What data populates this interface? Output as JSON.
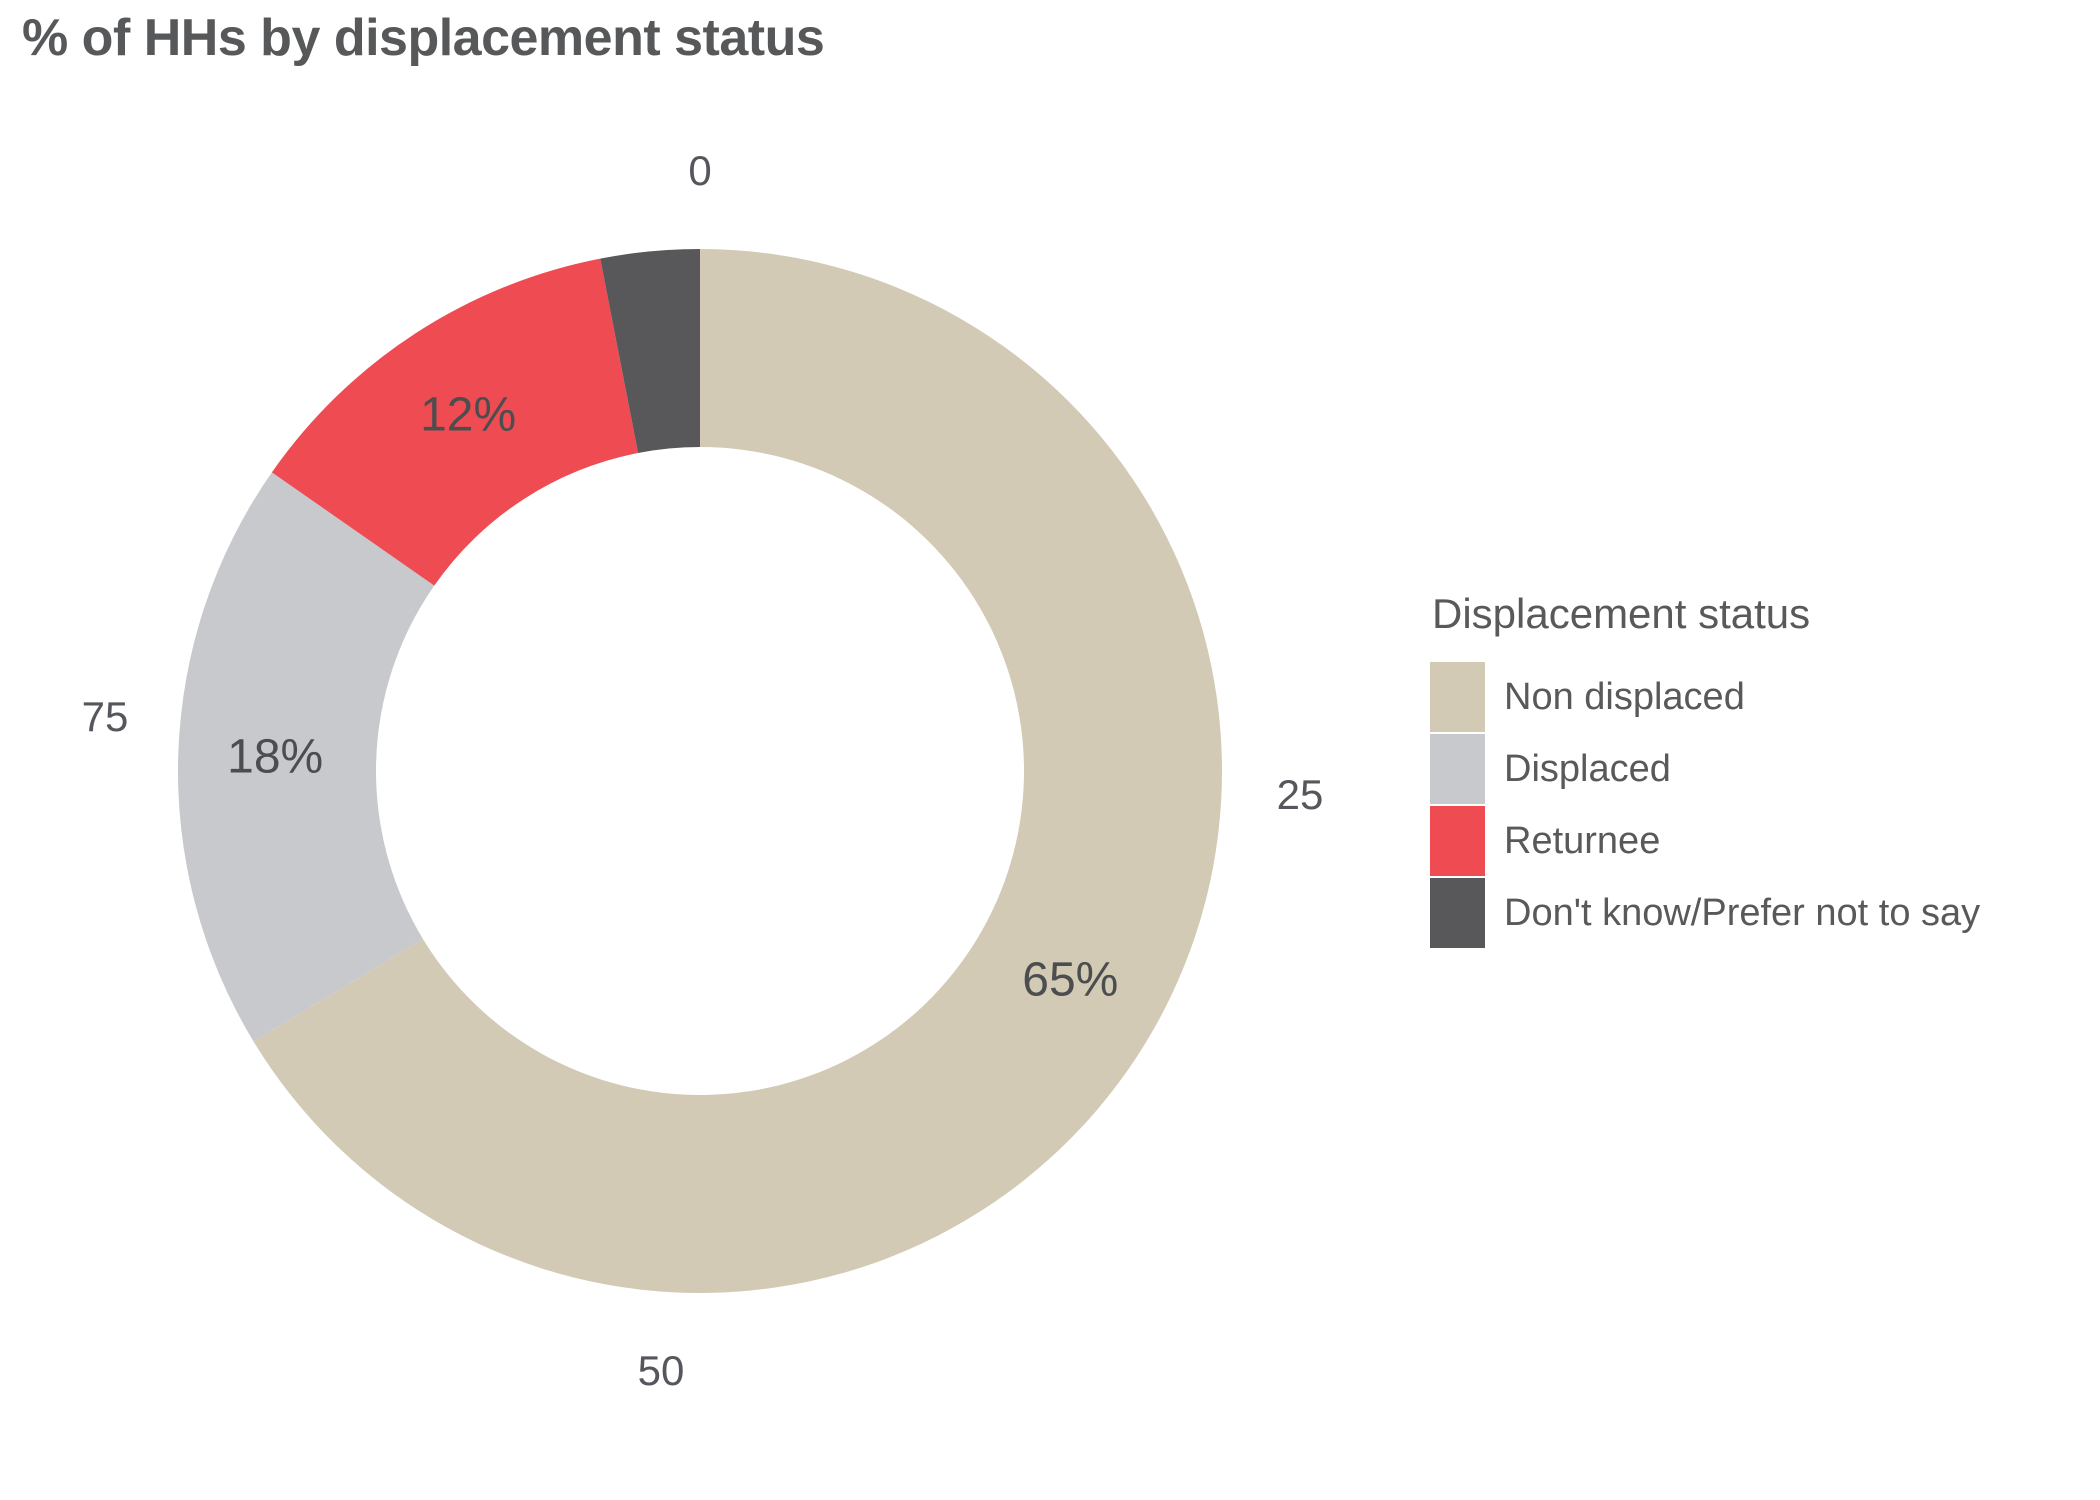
{
  "title": "% of HHs by displacement status",
  "chart_data": {
    "type": "pie",
    "subtype": "donut",
    "title": "% of HHs by displacement status",
    "categories": [
      "Non displaced",
      "Displaced",
      "Returnee",
      "Don't know/Prefer not to say"
    ],
    "values": [
      65,
      18,
      12,
      3
    ],
    "displayed_labels": [
      "65%",
      "18%",
      "12%",
      ""
    ],
    "colors": [
      "#d2cab5",
      "#c8c9cc",
      "#ee4c52",
      "#58585a"
    ],
    "start_angle_deg": 0,
    "direction": "clockwise",
    "donut_hole_ratio": 0.62,
    "outer_ticks": [
      {
        "label": "0",
        "angle": 0
      },
      {
        "label": "25",
        "angle": 90
      },
      {
        "label": "50",
        "angle": 180
      },
      {
        "label": "75",
        "angle": 270
      }
    ],
    "legend": {
      "title": "Displacement status",
      "position": "right",
      "entries": [
        "Non displaced",
        "Displaced",
        "Returnee",
        "Don't know/Prefer not to say"
      ]
    }
  }
}
